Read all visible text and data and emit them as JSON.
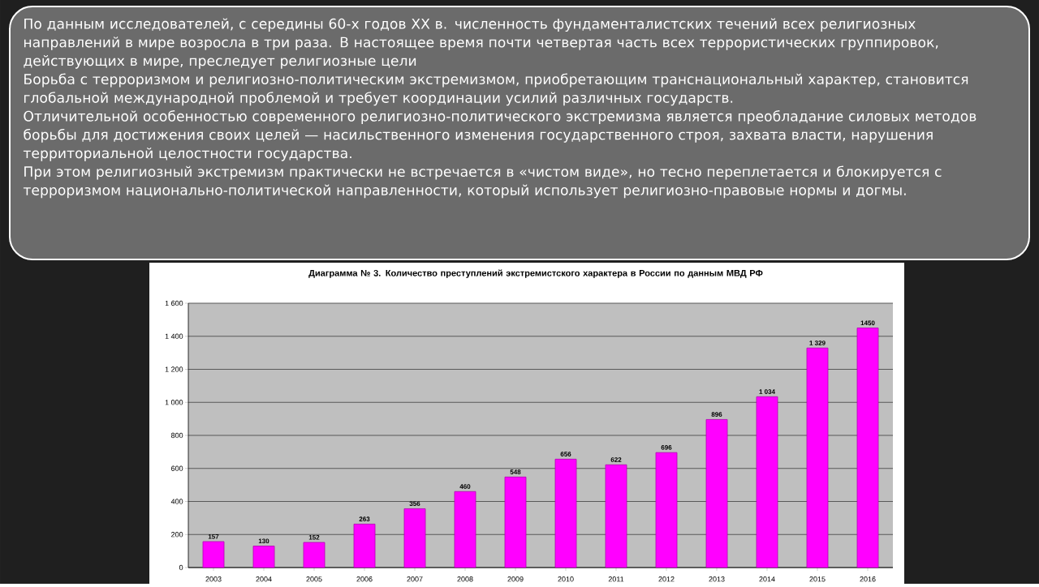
{
  "chart_data": {
    "type": "bar",
    "title": "Диаграмма № 3. Количество преступлений экстремистского характера в России по данным МВД РФ",
    "annotations": [
      "По данным исследователей, с середины 60-х годов XX в. численность фундаменталистских течений всех религиозных направлений в мире возросла в три раза. В настоящее время почти четвертая часть всех террористических группировок, действующих в мире, преследует религиозные цели",
      "Борьба с терроризмом и религиозно-политическим экстремизмом, приобретающим транснациональный характер, становится глобальной международной проблемой и требует координации усилий различных государств.",
      "Отличительной особенностью современного религиозно-политического экстремизма является преобладание силовых методов борьбы для достижения своих целей — насильственного изменения государственного строя, захвата власти, нарушения территориальной целостности государства.",
      "При этом религиозный экстремизм практически не встречается в «чистом виде», но тесно переплетается и блокируется с терроризмом национально-политической направленности, который использует религиозно-правовые нормы и догмы."
    ],
    "categories": [
      "2003",
      "2004",
      "2005",
      "2006",
      "2007",
      "2008",
      "2009",
      "2010",
      "2011",
      "2012",
      "2013",
      "2014",
      "2015",
      "2016"
    ],
    "values": [
      157,
      130,
      152,
      263,
      356,
      460,
      548,
      656,
      622,
      696,
      896,
      1034,
      1329,
      1450
    ],
    "value_labels": [
      "157",
      "130",
      "152",
      "263",
      "356",
      "460",
      "548",
      "656",
      "622",
      "696",
      "896",
      "1 034",
      "1 329",
      "1450"
    ],
    "color": "#ff00ff",
    "ylim": [
      0,
      1600
    ],
    "yticks": [
      0,
      200,
      400,
      600,
      800,
      {
        "value": 1000,
        "label": "1 000"
      },
      {
        "value": 1200,
        "label": "1 200"
      },
      {
        "value": 1400,
        "label": "1 400"
      },
      {
        "value": 1600,
        "label": "1 600"
      }
    ],
    "grid": "y"
  }
}
